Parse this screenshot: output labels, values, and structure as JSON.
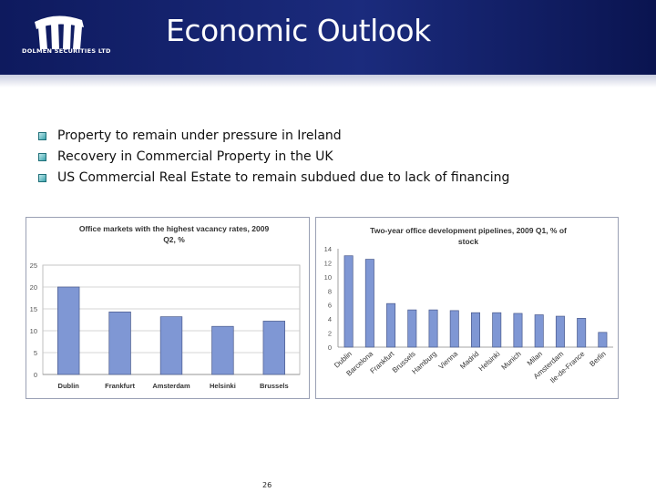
{
  "header": {
    "logo_text": "DOLMEN SECURITIES LTD",
    "title": "Economic Outlook",
    "colors": {
      "band": "#17267a",
      "bullet": "#3aa4ad",
      "bar": "#7f97d4"
    }
  },
  "bullets": [
    "Property to remain under pressure in Ireland",
    "Recovery in Commercial Property in the UK",
    "US Commercial Real Estate to remain subdued due to lack of financing"
  ],
  "chart_data": [
    {
      "type": "bar",
      "title": "Office markets with the highest vacancy rates, 2009",
      "subtitle": "Q2, %",
      "categories": [
        "Dublin",
        "Frankfurt",
        "Amsterdam",
        "Helsinki",
        "Brussels"
      ],
      "values": [
        20,
        14.3,
        13.2,
        11,
        12.2
      ],
      "ylim": [
        0,
        25
      ],
      "yticks": [
        "0",
        "5",
        "10",
        "15",
        "20",
        "25"
      ],
      "grid": true,
      "xlabel": "",
      "ylabel": ""
    },
    {
      "type": "bar",
      "title": "Two-year office development pipelines, 2009 Q1, % of",
      "subtitle": "stock",
      "categories": [
        "Dublin",
        "Barcelona",
        "Frankfurt",
        "Brussels",
        "Hamburg",
        "Vienna",
        "Madrid",
        "Helsinki",
        "Munich",
        "Milan",
        "Amsterdam",
        "Ile-de-France",
        "Berlin"
      ],
      "values": [
        13,
        12.5,
        6.2,
        5.3,
        5.3,
        5.2,
        4.9,
        4.9,
        4.8,
        4.6,
        4.4,
        4.1,
        2.1
      ],
      "ylim": [
        0,
        14
      ],
      "yticks": [
        "0",
        "2",
        "4",
        "6",
        "8",
        "10",
        "12",
        "14"
      ],
      "grid": false,
      "xlabel": "",
      "ylabel": ""
    }
  ],
  "footer": {
    "page_number": "26"
  }
}
